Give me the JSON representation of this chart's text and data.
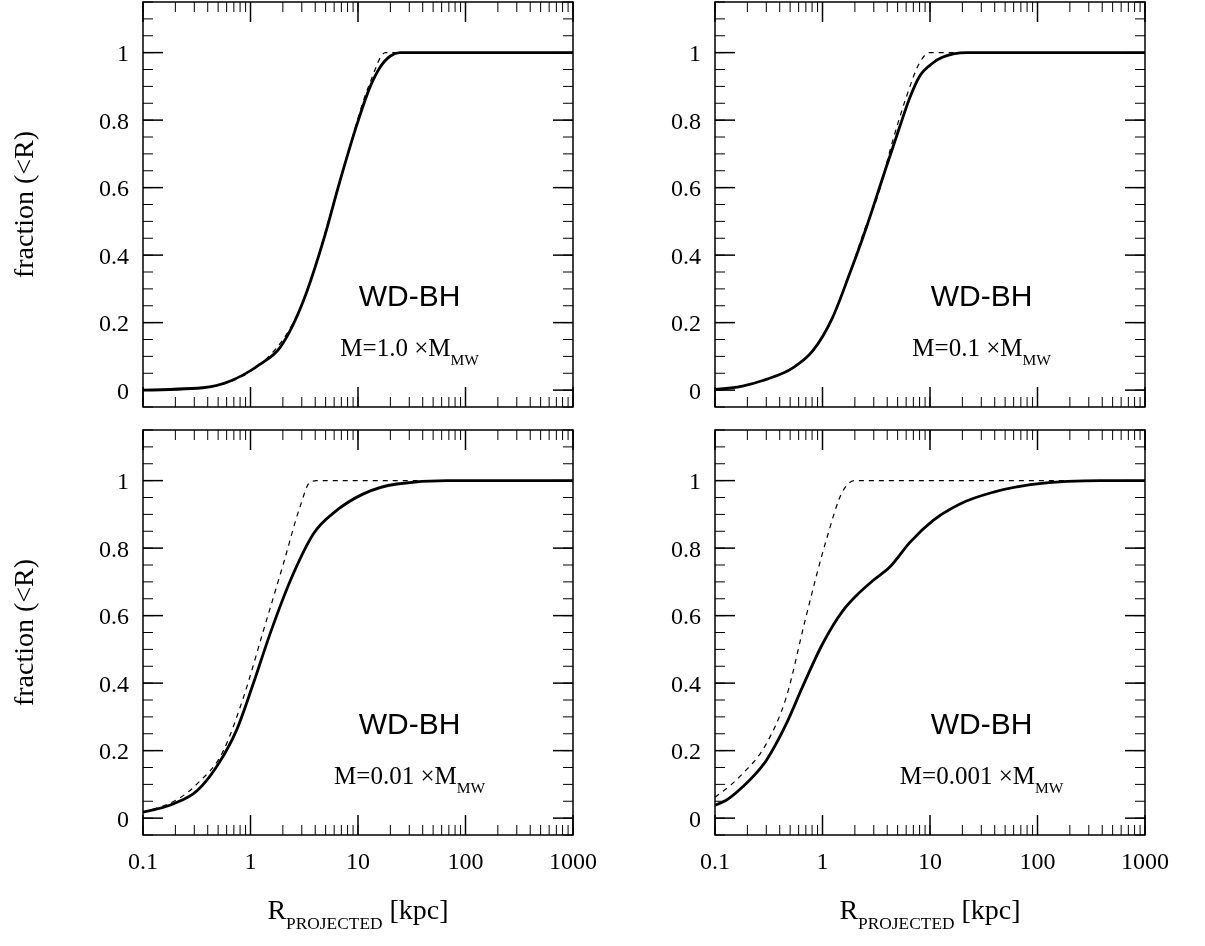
{
  "chart_data": [
    {
      "type": "line",
      "xlim": [
        0.1,
        1000
      ],
      "xticks": [
        0.1,
        1,
        10,
        100,
        1000
      ],
      "ylim": [
        -0.05,
        1.15
      ],
      "yticks": [
        0,
        0.2,
        0.4,
        0.6,
        0.8,
        1
      ],
      "log": "x",
      "tick_labels": "y",
      "ylabel": "fraction (<R)",
      "annotations": [
        "WD-BH",
        "M=1.0  ×M$_{MW}$"
      ],
      "series": [
        {
          "color": "#000000",
          "line_style": "solid",
          "x": [
            0.1,
            0.36,
            0.65,
            1.22,
            1.88,
            3.1,
            4.75,
            6.8,
            9.8,
            12.9,
            16,
            20,
            24.5,
            1000
          ],
          "values": [
            0,
            0.007,
            0.027,
            0.076,
            0.126,
            0.264,
            0.442,
            0.62,
            0.788,
            0.897,
            0.956,
            0.99,
            1,
            1
          ]
        },
        {
          "color": "#000000",
          "line_style": "dashed",
          "x": [
            0.1,
            0.36,
            1.22,
            3.1,
            6.8,
            12.9,
            18,
            1000
          ],
          "values": [
            0,
            0.007,
            0.076,
            0.264,
            0.62,
            0.91,
            1,
            1
          ]
        }
      ]
    },
    {
      "type": "line",
      "xlim": [
        0.1,
        1000
      ],
      "xticks": [
        0.1,
        1,
        10,
        100,
        1000
      ],
      "ylim": [
        -0.05,
        1.15
      ],
      "yticks": [
        0,
        0.2,
        0.4,
        0.6,
        0.8,
        1
      ],
      "log": "x",
      "tick_labels": "y",
      "annotations": [
        "WD-BH",
        "M=0.1  ×M$_{MW}$"
      ],
      "series": [
        {
          "color": "#000000",
          "line_style": "solid",
          "x": [
            0.1,
            0.18,
            0.3,
            0.53,
            0.81,
            1.24,
            1.78,
            2.56,
            3.64,
            5.2,
            6.5,
            8,
            10.7,
            16.5,
            22,
            1000
          ],
          "values": [
            0.002,
            0.012,
            0.032,
            0.066,
            0.116,
            0.215,
            0.343,
            0.482,
            0.63,
            0.778,
            0.867,
            0.93,
            0.97,
            0.996,
            1,
            1
          ]
        },
        {
          "color": "#000000",
          "line_style": "dashed",
          "x": [
            0.1,
            0.18,
            0.3,
            0.53,
            0.81,
            1.24,
            1.78,
            2.56,
            3.15,
            4.5,
            6,
            8,
            9.9,
            1000
          ],
          "values": [
            0.002,
            0.012,
            0.032,
            0.066,
            0.116,
            0.215,
            0.343,
            0.49,
            0.56,
            0.739,
            0.867,
            0.97,
            1,
            1
          ]
        }
      ]
    },
    {
      "type": "line",
      "xlim": [
        0.1,
        1000
      ],
      "xticks": [
        0.1,
        1,
        10,
        100,
        1000
      ],
      "ylim": [
        -0.05,
        1.15
      ],
      "yticks": [
        0,
        0.2,
        0.4,
        0.6,
        0.8,
        1
      ],
      "log": "x",
      "xlabel": "R$_{PROJECTED}$ [kpc]",
      "ylabel": "fraction (<R)",
      "annotations": [
        "WD-BH",
        "M=0.01  ×M$_{MW}$"
      ],
      "series": [
        {
          "color": "#000000",
          "line_style": "solid",
          "x": [
            0.1,
            0.19,
            0.32,
            0.48,
            0.74,
            1.06,
            1.52,
            2.5,
            3.84,
            6.3,
            11.1,
            23,
            67,
            1000
          ],
          "values": [
            0.018,
            0.042,
            0.082,
            0.151,
            0.26,
            0.398,
            0.546,
            0.724,
            0.842,
            0.911,
            0.96,
            0.99,
            1,
            1
          ]
        },
        {
          "color": "#000000",
          "line_style": "dashed",
          "x": [
            0.1,
            0.32,
            0.56,
            0.86,
            1.32,
            2.02,
            2.88,
            3.57,
            4.1,
            1000
          ],
          "values": [
            0.018,
            0.102,
            0.2,
            0.358,
            0.556,
            0.753,
            0.921,
            0.995,
            1,
            1
          ]
        }
      ]
    },
    {
      "type": "line",
      "xlim": [
        0.1,
        1000
      ],
      "xticks": [
        0.1,
        1,
        10,
        100,
        1000
      ],
      "ylim": [
        -0.05,
        1.15
      ],
      "yticks": [
        0,
        0.2,
        0.4,
        0.6,
        0.8,
        1
      ],
      "log": "x",
      "xlabel": "R$_{PROJECTED}$ [kpc]",
      "annotations": [
        "WD-BH",
        "M=0.001  ×M$_{MW}$"
      ],
      "series": [
        {
          "color": "#000000",
          "line_style": "solid",
          "x": [
            0.1,
            0.126,
            0.18,
            0.3,
            0.46,
            0.65,
            1,
            1.55,
            2.06,
            2.95,
            4.2,
            6.5,
            10.7,
            19,
            39,
            86,
            189,
            390,
            1000
          ],
          "values": [
            0.038,
            0.052,
            0.092,
            0.171,
            0.279,
            0.388,
            0.516,
            0.615,
            0.659,
            0.704,
            0.743,
            0.817,
            0.882,
            0.931,
            0.966,
            0.988,
            0.998,
            1,
            1
          ]
        },
        {
          "color": "#000000",
          "line_style": "dashed",
          "x": [
            0.1,
            0.18,
            0.3,
            0.46,
            0.7,
            1.08,
            1.55,
            1.99,
            1000
          ],
          "values": [
            0.062,
            0.131,
            0.22,
            0.358,
            0.595,
            0.822,
            0.97,
            1,
            1
          ]
        }
      ]
    }
  ]
}
